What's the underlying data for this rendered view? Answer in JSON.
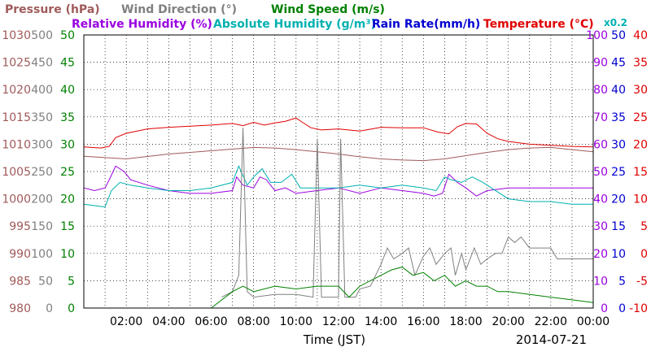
{
  "chart_data": {
    "type": "line",
    "date": "2014-07-21",
    "xlabel": "Time (JST)",
    "x_ticks": [
      "02:00",
      "04:00",
      "06:00",
      "08:00",
      "10:00",
      "12:00",
      "14:00",
      "16:00",
      "18:00",
      "20:00",
      "22:00",
      "00:00"
    ],
    "x_range_hours": [
      0,
      24
    ],
    "grid": true,
    "header": {
      "pressure": "Pressure (hPa)",
      "wind_direction": "Wind Direction (°)",
      "wind_speed": "Wind Speed (m/s)",
      "relative_humidity": "Relative Humidity (%)",
      "absolute_humidity": "Absolute Humidity (g/m³)",
      "rain_rate": "Rain Rate(mm/h)",
      "temperature": "Temperature (°C)",
      "scale_note": "x0.2"
    },
    "axes": {
      "pressure": {
        "range": [
          980,
          1030
        ],
        "ticks": [
          "1030",
          "1025",
          "1020",
          "1015",
          "1010",
          "1005",
          "1000",
          "995",
          "990",
          "985",
          "980"
        ],
        "color": "#a05a5a"
      },
      "wind_direction": {
        "range": [
          0,
          500
        ],
        "ticks": [
          "500",
          "450",
          "400",
          "350",
          "300",
          "250",
          "200",
          "150",
          "100",
          "50",
          "0"
        ],
        "color": "#808080"
      },
      "wind_speed": {
        "range": [
          0,
          50
        ],
        "ticks": [
          "50",
          "45",
          "40",
          "35",
          "30",
          "25",
          "20",
          "15",
          "10",
          "5",
          "0"
        ],
        "color": "#008000"
      },
      "humidity": {
        "range": [
          0,
          100
        ],
        "ticks": [
          "100",
          "90",
          "80",
          "70",
          "60",
          "50",
          "40",
          "30",
          "20",
          "10",
          "0"
        ],
        "color": "#9a00e0"
      },
      "rain_rate": {
        "range": [
          0,
          50
        ],
        "ticks": [
          "50",
          "45",
          "40",
          "35",
          "30",
          "25",
          "20",
          "15",
          "10",
          "5",
          "0"
        ],
        "color": "#0000d0"
      },
      "temperature": {
        "range": [
          -10,
          40
        ],
        "ticks": [
          "40",
          "35",
          "30",
          "25",
          "20",
          "15",
          "10",
          "5",
          "0",
          "-5",
          "-10"
        ],
        "color": "#e00000"
      }
    },
    "series": [
      {
        "key": "temperature",
        "color": "#e00000",
        "axis": "temperature",
        "points": [
          [
            0,
            19.5
          ],
          [
            0.8,
            19.3
          ],
          [
            1.2,
            19.6
          ],
          [
            1.5,
            21.2
          ],
          [
            2,
            22.0
          ],
          [
            3,
            22.8
          ],
          [
            4,
            23.1
          ],
          [
            5,
            23.3
          ],
          [
            6,
            23.5
          ],
          [
            7,
            23.8
          ],
          [
            7.5,
            23.4
          ],
          [
            8,
            24.0
          ],
          [
            8.5,
            23.5
          ],
          [
            9,
            23.9
          ],
          [
            9.5,
            24.2
          ],
          [
            10,
            24.8
          ],
          [
            10.3,
            24.0
          ],
          [
            10.7,
            23.0
          ],
          [
            11.2,
            22.6
          ],
          [
            12,
            22.8
          ],
          [
            13,
            22.4
          ],
          [
            14,
            23.1
          ],
          [
            15,
            23.0
          ],
          [
            16,
            23.0
          ],
          [
            16.7,
            22.2
          ],
          [
            17.2,
            21.9
          ],
          [
            17.6,
            23.2
          ],
          [
            18,
            23.8
          ],
          [
            18.5,
            23.7
          ],
          [
            19,
            22.0
          ],
          [
            19.5,
            21.0
          ],
          [
            20,
            20.5
          ],
          [
            21,
            20.0
          ],
          [
            22,
            19.8
          ],
          [
            23,
            19.6
          ],
          [
            24,
            19.5
          ]
        ]
      },
      {
        "key": "pressure",
        "color": "#a05a5a",
        "axis": "pressure",
        "points": [
          [
            0,
            1007.8
          ],
          [
            2,
            1007.3
          ],
          [
            4,
            1008.2
          ],
          [
            6,
            1008.8
          ],
          [
            8,
            1009.4
          ],
          [
            9,
            1009.3
          ],
          [
            10,
            1009.0
          ],
          [
            11,
            1008.6
          ],
          [
            12,
            1008.2
          ],
          [
            13,
            1007.7
          ],
          [
            14,
            1007.3
          ],
          [
            15,
            1007.1
          ],
          [
            16,
            1007.0
          ],
          [
            17,
            1007.3
          ],
          [
            18,
            1007.9
          ],
          [
            19,
            1008.5
          ],
          [
            20,
            1009.0
          ],
          [
            21,
            1009.3
          ],
          [
            22,
            1009.4
          ],
          [
            23,
            1009.0
          ],
          [
            24,
            1008.6
          ]
        ]
      },
      {
        "key": "relative_humidity",
        "color": "#9a00e0",
        "axis": "humidity",
        "points": [
          [
            0,
            44
          ],
          [
            0.5,
            43
          ],
          [
            1,
            44
          ],
          [
            1.2,
            47
          ],
          [
            1.5,
            52
          ],
          [
            1.9,
            50
          ],
          [
            2.2,
            47
          ],
          [
            3,
            45
          ],
          [
            4,
            43
          ],
          [
            5,
            42
          ],
          [
            6,
            42
          ],
          [
            7,
            43
          ],
          [
            7.2,
            48
          ],
          [
            7.5,
            45
          ],
          [
            8,
            44
          ],
          [
            8.3,
            48
          ],
          [
            8.6,
            47
          ],
          [
            9,
            43
          ],
          [
            9.5,
            44
          ],
          [
            10,
            42
          ],
          [
            11,
            43
          ],
          [
            12,
            44
          ],
          [
            13,
            42
          ],
          [
            14,
            44
          ],
          [
            15,
            43
          ],
          [
            16,
            42
          ],
          [
            16.5,
            41
          ],
          [
            16.9,
            42
          ],
          [
            17.2,
            49
          ],
          [
            17.6,
            46
          ],
          [
            18,
            44
          ],
          [
            18.5,
            41
          ],
          [
            19,
            43
          ],
          [
            20,
            44
          ],
          [
            21,
            44
          ],
          [
            22,
            44
          ],
          [
            23,
            44
          ],
          [
            24,
            44
          ]
        ]
      },
      {
        "key": "absolute_humidity",
        "color": "#00b0b0",
        "axis": "humidity",
        "points": [
          [
            0,
            38
          ],
          [
            1,
            37
          ],
          [
            1.3,
            43
          ],
          [
            1.7,
            46
          ],
          [
            2.2,
            45
          ],
          [
            3,
            44
          ],
          [
            4,
            43
          ],
          [
            5,
            43
          ],
          [
            6,
            44
          ],
          [
            7,
            46
          ],
          [
            7.3,
            52
          ],
          [
            7.7,
            45
          ],
          [
            8,
            48
          ],
          [
            8.4,
            51
          ],
          [
            8.8,
            46
          ],
          [
            9.3,
            46
          ],
          [
            9.8,
            49
          ],
          [
            10.2,
            44
          ],
          [
            11,
            44
          ],
          [
            12,
            44
          ],
          [
            13,
            45
          ],
          [
            14,
            44
          ],
          [
            15,
            45
          ],
          [
            16,
            44
          ],
          [
            16.6,
            43
          ],
          [
            17,
            48
          ],
          [
            17.3,
            47
          ],
          [
            17.8,
            46
          ],
          [
            18.3,
            48
          ],
          [
            18.8,
            46
          ],
          [
            19,
            45
          ],
          [
            20,
            40
          ],
          [
            21,
            39
          ],
          [
            22,
            39
          ],
          [
            23,
            38
          ],
          [
            24,
            38
          ]
        ]
      },
      {
        "key": "wind_direction",
        "color": "#808080",
        "axis": "wind_direction",
        "points": [
          [
            6.5,
            20
          ],
          [
            7,
            30
          ],
          [
            7.3,
            60
          ],
          [
            7.5,
            330
          ],
          [
            7.7,
            30
          ],
          [
            8,
            20
          ],
          [
            9,
            25
          ],
          [
            10,
            25
          ],
          [
            10.8,
            20
          ],
          [
            11,
            310
          ],
          [
            11.2,
            20
          ],
          [
            12,
            20
          ],
          [
            12.1,
            310
          ],
          [
            12.3,
            20
          ],
          [
            12.8,
            20
          ],
          [
            13,
            35
          ],
          [
            13.5,
            40
          ],
          [
            14,
            80
          ],
          [
            14.3,
            110
          ],
          [
            14.6,
            90
          ],
          [
            15,
            100
          ],
          [
            15.3,
            110
          ],
          [
            15.6,
            60
          ],
          [
            16,
            95
          ],
          [
            16.3,
            110
          ],
          [
            16.6,
            80
          ],
          [
            17,
            100
          ],
          [
            17.3,
            110
          ],
          [
            17.5,
            60
          ],
          [
            17.8,
            100
          ],
          [
            18,
            70
          ],
          [
            18.4,
            110
          ],
          [
            18.7,
            80
          ],
          [
            19,
            90
          ],
          [
            19.4,
            100
          ],
          [
            19.7,
            100
          ],
          [
            20,
            130
          ],
          [
            20.3,
            120
          ],
          [
            20.6,
            130
          ],
          [
            21,
            110
          ],
          [
            22,
            110
          ],
          [
            22.3,
            90
          ],
          [
            23,
            90
          ],
          [
            24,
            90
          ]
        ]
      },
      {
        "key": "wind_speed",
        "color": "#008000",
        "axis": "wind_speed",
        "points": [
          [
            6,
            0
          ],
          [
            7,
            3
          ],
          [
            7.5,
            4
          ],
          [
            8,
            3
          ],
          [
            9,
            4
          ],
          [
            10,
            3.5
          ],
          [
            11,
            4
          ],
          [
            12,
            4
          ],
          [
            12.5,
            2
          ],
          [
            13,
            4
          ],
          [
            13.5,
            5
          ],
          [
            14,
            6
          ],
          [
            14.5,
            7
          ],
          [
            15,
            7.5
          ],
          [
            15.5,
            6
          ],
          [
            16,
            6.5
          ],
          [
            16.5,
            5
          ],
          [
            17,
            6
          ],
          [
            17.5,
            4
          ],
          [
            18,
            5
          ],
          [
            18.5,
            4
          ],
          [
            19,
            4
          ],
          [
            19.5,
            3
          ],
          [
            20,
            3
          ],
          [
            21,
            2.5
          ],
          [
            22,
            2
          ],
          [
            23,
            1.5
          ],
          [
            24,
            1
          ]
        ]
      },
      {
        "key": "rain_rate",
        "color": "#0000d0",
        "axis": "rain_rate",
        "points": [
          [
            0,
            0
          ],
          [
            24,
            0
          ]
        ]
      }
    ]
  }
}
